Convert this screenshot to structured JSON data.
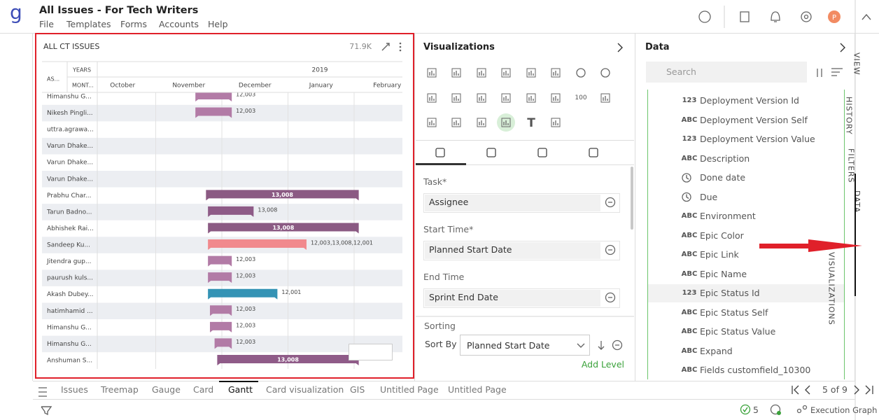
{
  "app": {
    "logo": "g",
    "title": "All Issues - For Tech Writers",
    "menu": [
      "File",
      "Templates",
      "Forms",
      "Accounts",
      "Help"
    ],
    "avatar": "P"
  },
  "widget": {
    "title": "ALL CT ISSUES",
    "count": "71.9K",
    "header": {
      "row_label": "AS...",
      "years": "YEARS",
      "months_label": "MONT...",
      "year": "2019"
    },
    "months": [
      "October",
      "November",
      "December",
      "January",
      "February"
    ],
    "rows": [
      {
        "name": "Himanshu G...",
        "start": 1.6,
        "end": 2.15,
        "label": "12,003",
        "color": "#b27ba6"
      },
      {
        "name": "Nikesh Pingli...",
        "start": 1.6,
        "end": 2.15,
        "label": "12,003",
        "color": "#b27ba6"
      },
      {
        "name": "uttra.agrawa...",
        "start": null,
        "end": null,
        "label": null,
        "color": null
      },
      {
        "name": "Varun Dhake...",
        "start": null,
        "end": null,
        "label": null,
        "color": null
      },
      {
        "name": "Varun Dhake...",
        "start": null,
        "end": null,
        "label": null,
        "color": null
      },
      {
        "name": "Varun Dhake...",
        "start": null,
        "end": null,
        "label": null,
        "color": null
      },
      {
        "name": "Prabhu Char...",
        "start": 1.76,
        "end": 4.07,
        "label": "13,008",
        "color": "#8b5a83"
      },
      {
        "name": "Tarun Badno...",
        "start": 1.79,
        "end": 2.48,
        "label": "13,008",
        "color": "#8e5b87"
      },
      {
        "name": "Abhishek Rai...",
        "start": 1.79,
        "end": 4.07,
        "label": "13,008",
        "color": "#8b5a83"
      },
      {
        "name": "Sandeep Ku...",
        "start": 1.79,
        "end": 3.28,
        "label": "12,003,13,008,12,001",
        "color": "#f1898d"
      },
      {
        "name": "Jitendra gup...",
        "start": 1.79,
        "end": 2.15,
        "label": "12,003",
        "color": "#b27ba6"
      },
      {
        "name": "paurush kuls...",
        "start": 1.79,
        "end": 2.15,
        "label": "12,003",
        "color": "#b27ba6"
      },
      {
        "name": "Akash Dubey...",
        "start": 1.79,
        "end": 2.84,
        "label": "12,001",
        "color": "#3493b5"
      },
      {
        "name": "hatimhamid ...",
        "start": 1.82,
        "end": 2.15,
        "label": "12,003",
        "color": "#b27ba6"
      },
      {
        "name": "Himanshu G...",
        "start": 1.82,
        "end": 2.15,
        "label": "12,003",
        "color": "#b27ba6"
      },
      {
        "name": "Himanshu G...",
        "start": 1.89,
        "end": 2.15,
        "label": "12,003",
        "color": "#b27ba6"
      },
      {
        "name": "Anshuman S...",
        "start": 1.93,
        "end": 4.07,
        "label": "13,008",
        "color": "#8f5b88"
      }
    ]
  },
  "visualizations": {
    "title": "Visualizations",
    "icon_labels": [
      "100",
      "T"
    ],
    "fields": [
      {
        "label": "Task*",
        "value": "Assignee"
      },
      {
        "label": "Start Time*",
        "value": "Planned Start Date"
      },
      {
        "label": "End Time",
        "value": "Sprint End Date"
      }
    ],
    "sorting": {
      "title": "Sorting",
      "sort_by": "Sort By",
      "value": "Planned Start Date",
      "add_level": "Add Level"
    }
  },
  "data_panel": {
    "title": "Data",
    "search": "Search",
    "items": [
      {
        "type": "123",
        "name": "Deployment Version Id"
      },
      {
        "type": "ABC",
        "name": "Deployment Version Self"
      },
      {
        "type": "123",
        "name": "Deployment Version Value"
      },
      {
        "type": "ABC",
        "name": "Description"
      },
      {
        "type": null,
        "name": "Done date"
      },
      {
        "type": null,
        "name": "Due"
      },
      {
        "type": "ABC",
        "name": "Environment"
      },
      {
        "type": "ABC",
        "name": "Epic Color"
      },
      {
        "type": "ABC",
        "name": "Epic Link"
      },
      {
        "type": "ABC",
        "name": "Epic Name"
      },
      {
        "type": "123",
        "name": "Epic Status Id"
      },
      {
        "type": "ABC",
        "name": "Epic Status Self"
      },
      {
        "type": "ABC",
        "name": "Epic Status Value"
      },
      {
        "type": "ABC",
        "name": "Expand"
      },
      {
        "type": "ABC",
        "name": "Fields customfield_10300"
      }
    ]
  },
  "side_tabs": [
    "VIEW",
    "HISTORY",
    "FILTERS",
    "DATA",
    "VISUALIZATIONS"
  ],
  "page_tabs": [
    "Issues",
    "Treemap",
    "Gauge",
    "Card",
    "Gantt",
    "Card visualization",
    "GIS",
    "Untitled Page",
    "Untitled Page"
  ],
  "pagination": "5 of 9",
  "status": {
    "count": "5",
    "graph": "Execution Graph"
  }
}
